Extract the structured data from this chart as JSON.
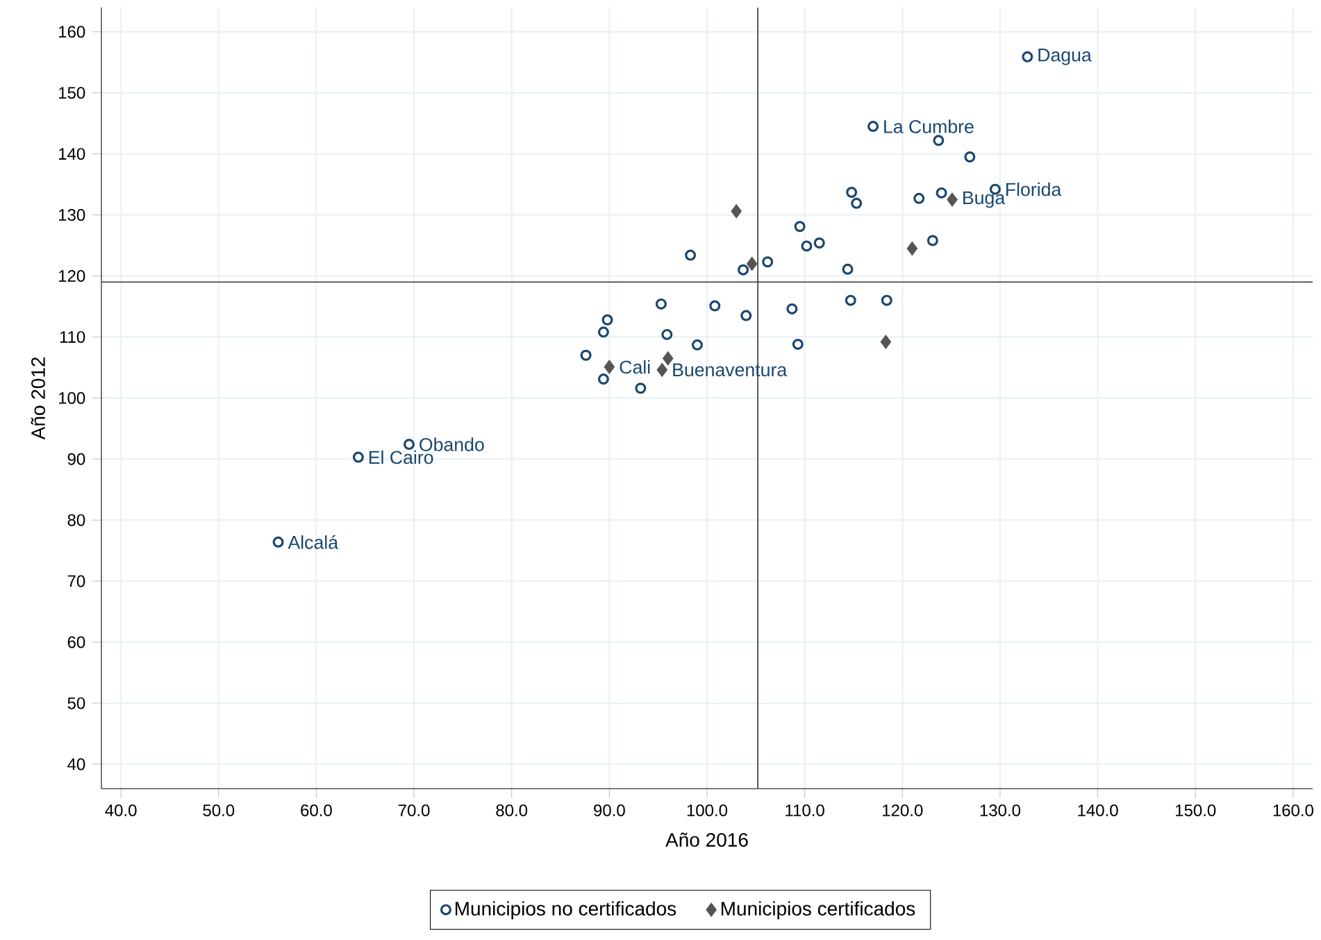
{
  "chart_data": {
    "type": "scatter",
    "xlabel": "Año 2016",
    "ylabel": "Año 2012",
    "xlim": [
      38,
      162
    ],
    "ylim": [
      36,
      164
    ],
    "xticks": [
      {
        "value": 40,
        "label": "40.0"
      },
      {
        "value": 50,
        "label": "50.0"
      },
      {
        "value": 60,
        "label": "60.0"
      },
      {
        "value": 70,
        "label": "70.0"
      },
      {
        "value": 80,
        "label": "80.0"
      },
      {
        "value": 90,
        "label": "90.0"
      },
      {
        "value": 100,
        "label": "100.0"
      },
      {
        "value": 110,
        "label": "110.0"
      },
      {
        "value": 120,
        "label": "120.0"
      },
      {
        "value": 130,
        "label": "130.0"
      },
      {
        "value": 140,
        "label": "140.0"
      },
      {
        "value": 150,
        "label": "150.0"
      },
      {
        "value": 160,
        "label": "160.0"
      }
    ],
    "yticks": [
      40,
      50,
      60,
      70,
      80,
      90,
      100,
      110,
      120,
      130,
      140,
      150,
      160
    ],
    "grid": true,
    "legend": "bottom",
    "series": [
      {
        "name": "Municipios no certificados",
        "color": "#1a476f",
        "marker": "circle",
        "x": [
          132.8,
          117.0,
          123.7,
          126.9,
          129.5,
          114.8,
          115.3,
          121.7,
          124.0,
          109.5,
          110.2,
          111.5,
          106.2,
          103.7,
          98.3,
          114.4,
          123.1,
          95.3,
          100.8,
          104.0,
          108.7,
          114.7,
          118.4,
          89.8,
          89.4,
          95.9,
          99.0,
          109.3,
          87.6,
          89.4,
          93.2,
          69.5,
          64.3,
          56.1
        ],
        "values": [
          155.9,
          144.5,
          142.2,
          139.5,
          134.2,
          133.7,
          131.9,
          132.7,
          133.6,
          128.1,
          124.9,
          125.4,
          122.3,
          121.0,
          123.4,
          121.1,
          125.8,
          115.4,
          115.1,
          113.5,
          114.6,
          116.0,
          116.0,
          112.8,
          110.8,
          110.4,
          108.7,
          108.8,
          107.0,
          103.1,
          101.6,
          92.4,
          90.3,
          76.4
        ]
      },
      {
        "name": "Municipios certificados",
        "color": "#555555",
        "marker": "diamond",
        "x": [
          103.0,
          104.6,
          121.0,
          125.1,
          90.0,
          96.0,
          95.4,
          118.3
        ],
        "values": [
          130.6,
          122.0,
          124.5,
          132.5,
          105.1,
          106.5,
          104.6,
          109.2
        ]
      }
    ],
    "ref_lines": [
      {
        "axis": "x",
        "value": 105.2,
        "color": "#333333"
      },
      {
        "axis": "y",
        "value": 119,
        "color": "#333333"
      }
    ],
    "annotations": [
      {
        "text": "Dagua",
        "x": 132.8,
        "y": 155.9
      },
      {
        "text": "La Cumbre",
        "x": 117.0,
        "y": 144.5
      },
      {
        "text": "Florida",
        "x": 129.5,
        "y": 134.2
      },
      {
        "text": "Buga",
        "x": 125.1,
        "y": 132.5
      },
      {
        "text": "Cali",
        "x": 90.0,
        "y": 105.1
      },
      {
        "text": "Buenaventura",
        "x": 95.4,
        "y": 104.6
      },
      {
        "text": "Obando",
        "x": 69.5,
        "y": 92.4
      },
      {
        "text": "El Cairo",
        "x": 64.3,
        "y": 90.3
      },
      {
        "text": "Alcalá",
        "x": 56.1,
        "y": 76.4
      }
    ]
  }
}
